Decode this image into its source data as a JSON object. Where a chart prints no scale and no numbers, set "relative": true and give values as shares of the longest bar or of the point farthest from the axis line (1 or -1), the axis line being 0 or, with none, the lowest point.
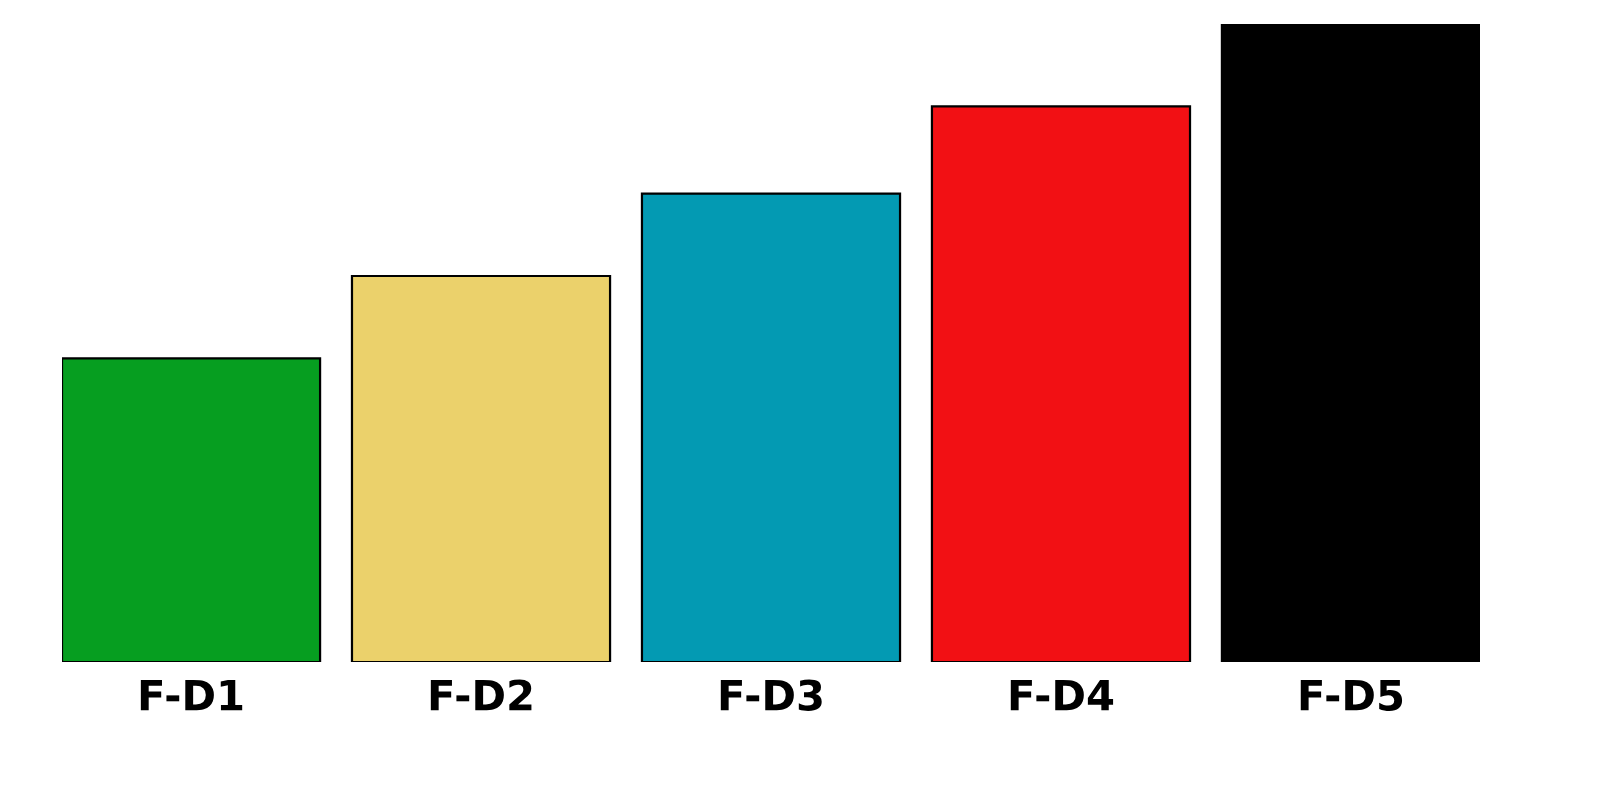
{
  "chart_data": {
    "type": "bar",
    "relative": true,
    "categories": [
      "F-D1",
      "F-D2",
      "F-D3",
      "F-D4",
      "F-D5"
    ],
    "values": [
      0.476,
      0.605,
      0.734,
      0.871,
      1
    ],
    "colors": [
      "#069e20",
      "#ebd16b",
      "#039ab3",
      "#f21014",
      "#000000"
    ],
    "grid": false,
    "legend": false
  }
}
